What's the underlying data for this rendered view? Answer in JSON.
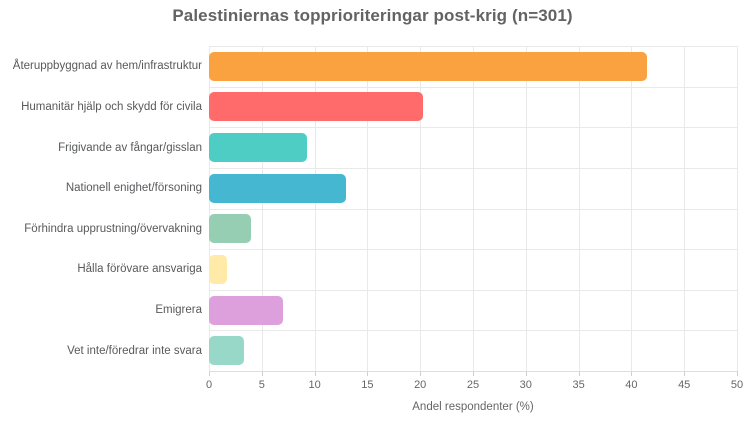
{
  "chart_data": {
    "type": "bar",
    "orientation": "horizontal",
    "title": "Palestiniernas topprioriteringar post-krig (n=301)",
    "xlabel": "Andel respondenter (%)",
    "ylabel": "",
    "categories": [
      "Återuppbyggnad av hem/infrastruktur",
      "Humanitär hjälp och skydd för civila",
      "Frigivande av fångar/gisslan",
      "Nationell enighet/försoning",
      "Förhindra upprustning/övervakning",
      "Hålla förövare ansvariga",
      "Emigrera",
      "Vet inte/föredrar inte svara"
    ],
    "values": [
      41.5,
      20.3,
      9.3,
      13,
      4,
      1.7,
      7,
      3.3
    ],
    "bar_colors": [
      "#FAA23F",
      "#FF6B6B",
      "#4ECDC4",
      "#45B7D1",
      "#96CEB4",
      "#FFEAA7",
      "#DDA0DD",
      "#98D8C8"
    ],
    "xlim": [
      0,
      50
    ],
    "x_ticks": [
      0,
      5,
      10,
      15,
      20,
      25,
      30,
      35,
      40,
      45,
      50
    ],
    "grid": true,
    "legend": false
  },
  "theme": {
    "background": "#ffffff",
    "title_color": "#636363",
    "category_label_color": "#58595b",
    "tick_label_color": "#666666",
    "axis_title_color": "#666666",
    "grid_color": "#e9e9e9",
    "axis_line_color": "#dedede",
    "tick_mark_color": "#cfcfcf"
  }
}
